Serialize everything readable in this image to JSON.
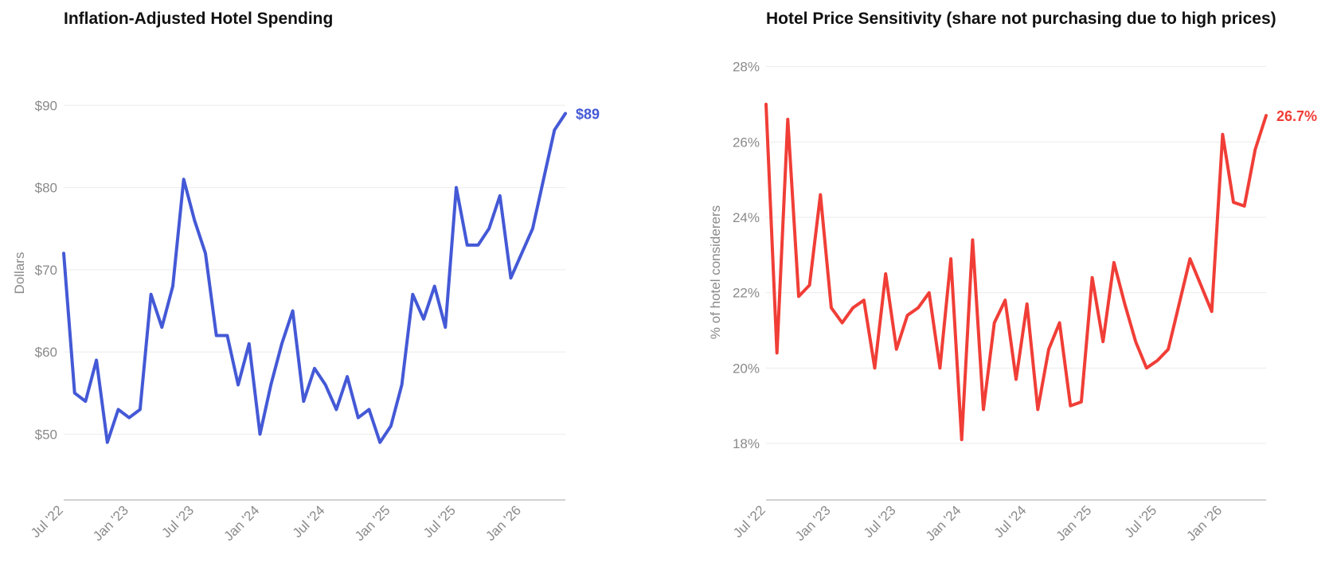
{
  "chart_data": [
    {
      "type": "line",
      "title": "Inflation-Adjusted Hotel Spending",
      "xlabel": "",
      "ylabel": "Dollars",
      "ylim": [
        42,
        97
      ],
      "y_ticks": [
        50,
        60,
        70,
        80,
        90
      ],
      "y_tick_labels": [
        "$50",
        "$60",
        "$70",
        "$80",
        "$90"
      ],
      "x_range": [
        "2022-07",
        "2026-05"
      ],
      "x_ticks": [
        "2022-07",
        "2023-01",
        "2023-07",
        "2024-01",
        "2024-07",
        "2025-01",
        "2025-07",
        "2026-01"
      ],
      "x_tick_labels": [
        "Jul '22",
        "Jan '23",
        "Jul '23",
        "Jan '24",
        "Jul '24",
        "Jan '25",
        "Jul '25",
        "Jan '26"
      ],
      "grid": true,
      "color": "#4459d6",
      "end_label": "$89",
      "series": [
        {
          "x": [
            "2022-07",
            "2022-08",
            "2022-09",
            "2022-10",
            "2022-11",
            "2022-12",
            "2023-01",
            "2023-02",
            "2023-03",
            "2023-04",
            "2023-05",
            "2023-06",
            "2023-07",
            "2023-08",
            "2023-09",
            "2023-10",
            "2023-11",
            "2023-12",
            "2024-01",
            "2024-02",
            "2024-03",
            "2024-04",
            "2024-05",
            "2024-06",
            "2024-07",
            "2024-08",
            "2024-09",
            "2024-10",
            "2024-11",
            "2024-12",
            "2025-01",
            "2025-02",
            "2025-03",
            "2025-04",
            "2025-05",
            "2025-06",
            "2025-07",
            "2025-08",
            "2025-09",
            "2025-10",
            "2025-11",
            "2025-12",
            "2026-01",
            "2026-02",
            "2026-03",
            "2026-04",
            "2026-05"
          ],
          "values": [
            72,
            55,
            54,
            59,
            49,
            53,
            52,
            53,
            67,
            63,
            68,
            81,
            76,
            72,
            62,
            62,
            56,
            61,
            50,
            56,
            61,
            65,
            54,
            58,
            56,
            53,
            57,
            52,
            53,
            49,
            51,
            56,
            67,
            64,
            68,
            63,
            80,
            73,
            73,
            75,
            79,
            69,
            72,
            75,
            81,
            87,
            89
          ]
        }
      ]
    },
    {
      "type": "line",
      "title": "Hotel Price Sensitivity (share not purchasing due to high prices)",
      "xlabel": "",
      "ylabel": "% of hotel considerers",
      "ylim": [
        16.5,
        28.5
      ],
      "y_ticks": [
        18,
        20,
        22,
        24,
        26,
        28
      ],
      "y_tick_labels": [
        "18%",
        "20%",
        "22%",
        "24%",
        "26%",
        "28%"
      ],
      "x_range": [
        "2022-07",
        "2026-05"
      ],
      "x_ticks": [
        "2022-07",
        "2023-01",
        "2023-07",
        "2024-01",
        "2024-07",
        "2025-01",
        "2025-07",
        "2026-01"
      ],
      "x_tick_labels": [
        "Jul '22",
        "Jan '23",
        "Jul '23",
        "Jan '24",
        "Jul '24",
        "Jan '25",
        "Jul '25",
        "Jan '26"
      ],
      "grid": true,
      "color": "#f03e37",
      "end_label": "26.7%",
      "series": [
        {
          "x": [
            "2022-07",
            "2022-08",
            "2022-09",
            "2022-10",
            "2022-11",
            "2022-12",
            "2023-01",
            "2023-02",
            "2023-03",
            "2023-04",
            "2023-05",
            "2023-06",
            "2023-07",
            "2023-08",
            "2023-09",
            "2023-10",
            "2023-11",
            "2023-12",
            "2024-01",
            "2024-02",
            "2024-03",
            "2024-04",
            "2024-05",
            "2024-06",
            "2024-07",
            "2024-08",
            "2024-09",
            "2024-10",
            "2024-11",
            "2024-12",
            "2025-01",
            "2025-02",
            "2025-03",
            "2025-04",
            "2025-05",
            "2025-06",
            "2025-07",
            "2025-08",
            "2025-09",
            "2025-10",
            "2025-11",
            "2025-12",
            "2026-01",
            "2026-02",
            "2026-03",
            "2026-04",
            "2026-05"
          ],
          "values": [
            27.0,
            20.4,
            26.6,
            21.9,
            22.2,
            24.6,
            21.6,
            21.2,
            21.6,
            21.8,
            20.0,
            22.5,
            20.5,
            21.4,
            21.6,
            22.0,
            20.0,
            22.9,
            18.1,
            23.4,
            18.9,
            21.2,
            21.8,
            19.7,
            21.7,
            18.9,
            20.5,
            21.2,
            19.0,
            19.1,
            22.4,
            20.7,
            22.8,
            21.7,
            20.7,
            20.0,
            20.2,
            20.5,
            21.7,
            22.9,
            22.2,
            21.5,
            26.2,
            24.4,
            24.3,
            25.8,
            26.7
          ]
        }
      ]
    }
  ]
}
